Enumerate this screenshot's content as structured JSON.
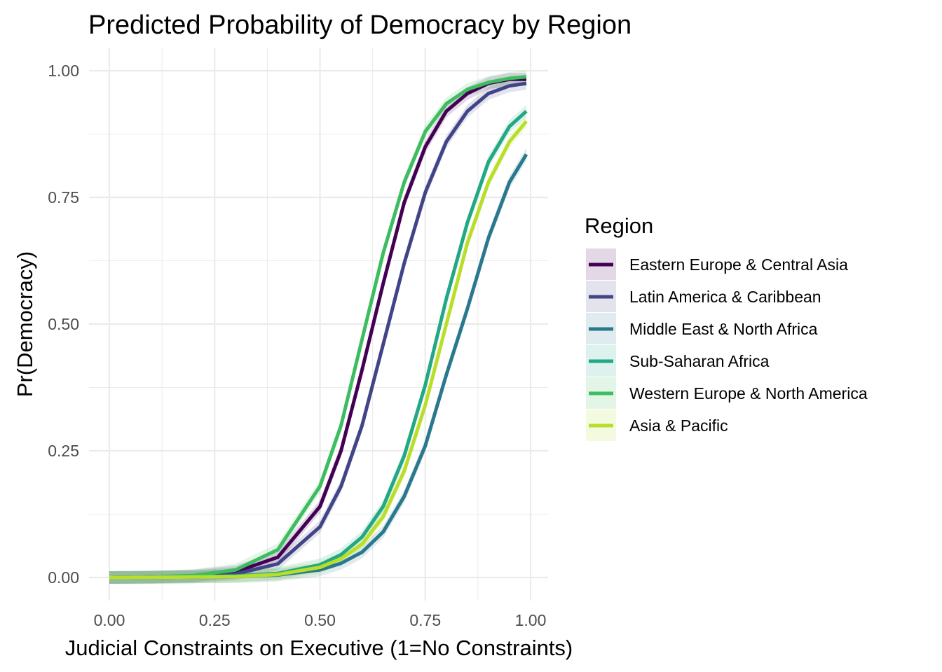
{
  "chart_data": {
    "type": "line",
    "title": "Predicted Probability of Democracy by Region",
    "xlabel": "Judicial Constraints on Executive (1=No Constraints)",
    "ylabel": "Pr(Democracy)",
    "xlim": [
      0,
      1
    ],
    "ylim": [
      0,
      1
    ],
    "x_ticks": [
      "0.00",
      "0.25",
      "0.50",
      "0.75",
      "1.00"
    ],
    "y_ticks": [
      "0.00",
      "0.25",
      "0.50",
      "0.75",
      "1.00"
    ],
    "grid": true,
    "legend_title": "Region",
    "legend_position": "right",
    "x": [
      0.0,
      0.1,
      0.2,
      0.3,
      0.4,
      0.5,
      0.55,
      0.6,
      0.65,
      0.7,
      0.75,
      0.8,
      0.85,
      0.9,
      0.95,
      0.99
    ],
    "series": [
      {
        "name": "Eastern Europe & Central Asia",
        "color": "#440154",
        "values": [
          0.0,
          0.001,
          0.003,
          0.011,
          0.04,
          0.14,
          0.25,
          0.41,
          0.58,
          0.74,
          0.85,
          0.92,
          0.955,
          0.975,
          0.983,
          0.983
        ]
      },
      {
        "name": "Latin America & Caribbean",
        "color": "#414487",
        "values": [
          0.0,
          0.0005,
          0.002,
          0.007,
          0.027,
          0.1,
          0.18,
          0.3,
          0.46,
          0.62,
          0.76,
          0.86,
          0.92,
          0.955,
          0.97,
          0.975
        ]
      },
      {
        "name": "Middle East & North Africa",
        "color": "#2A788E",
        "values": [
          0.0,
          0.0002,
          0.001,
          0.002,
          0.005,
          0.015,
          0.028,
          0.05,
          0.09,
          0.16,
          0.26,
          0.4,
          0.53,
          0.67,
          0.78,
          0.835
        ]
      },
      {
        "name": "Sub-Saharan Africa",
        "color": "#22A884",
        "values": [
          0.0,
          0.0003,
          0.001,
          0.003,
          0.008,
          0.025,
          0.045,
          0.08,
          0.14,
          0.24,
          0.38,
          0.55,
          0.7,
          0.82,
          0.89,
          0.92
        ]
      },
      {
        "name": "Western Europe & North America",
        "color": "#3DBC60",
        "values": [
          0.0,
          0.001,
          0.004,
          0.015,
          0.055,
          0.18,
          0.3,
          0.47,
          0.64,
          0.78,
          0.88,
          0.935,
          0.963,
          0.977,
          0.985,
          0.988
        ]
      },
      {
        "name": "Asia & Pacific",
        "color": "#B8DE29",
        "values": [
          0.0,
          0.0003,
          0.001,
          0.002,
          0.006,
          0.02,
          0.037,
          0.066,
          0.12,
          0.21,
          0.34,
          0.5,
          0.66,
          0.78,
          0.86,
          0.9
        ]
      }
    ]
  }
}
